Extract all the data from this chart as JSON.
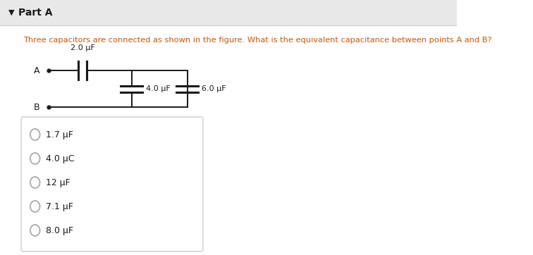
{
  "title": "Part A",
  "title_arrow": "▼",
  "question_text": "Three capacitors are connected as shown in the figure. What is the equivalent capacitance between points A and B?",
  "question_color": "#c8560a",
  "cap1_label": "2.0 μF",
  "cap2_label": "4.0 μF",
  "cap3_label": "6.0 μF",
  "point_a_label": "A",
  "point_b_label": "B",
  "choices": [
    "1.7 μF",
    "4.0 μC",
    "12 μF",
    "7.1 μF",
    "8.0 μF"
  ],
  "header_bg": "#e8e8e8",
  "body_bg": "#ffffff",
  "line_color": "#1a1a1a",
  "text_color": "#1a1a1a",
  "circle_color": "#aaaaaa",
  "box_edge_color": "#cccccc"
}
